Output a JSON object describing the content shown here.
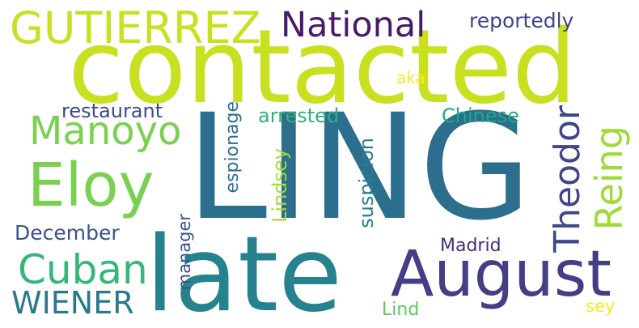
{
  "words": [
    {
      "key": "ling",
      "text": "LING",
      "color": "#2c6e8e"
    },
    {
      "key": "contacted",
      "text": "contacted",
      "color": "#c8e020"
    },
    {
      "key": "late",
      "text": "late",
      "color": "#26828e"
    },
    {
      "key": "august",
      "text": "August",
      "color": "#433e85"
    },
    {
      "key": "gutierrez",
      "text": "GUTIERREZ",
      "color": "#c8e020"
    },
    {
      "key": "national",
      "text": "National",
      "color": "#481a6c"
    },
    {
      "key": "reportedly",
      "text": "reportedly",
      "color": "#414487"
    },
    {
      "key": "aka",
      "text": "aka",
      "color": "#fde725"
    },
    {
      "key": "restaurant",
      "text": "restaurant",
      "color": "#3e4989"
    },
    {
      "key": "manoyo",
      "text": "Manoyo",
      "color": "#7ad151"
    },
    {
      "key": "eloy",
      "text": "Eloy",
      "color": "#7ad151"
    },
    {
      "key": "cuban",
      "text": "Cuban",
      "color": "#35b779"
    },
    {
      "key": "wiener",
      "text": "WIENER",
      "color": "#2a788e"
    },
    {
      "key": "december",
      "text": "December",
      "color": "#3b528b"
    },
    {
      "key": "arrested",
      "text": "arrested",
      "color": "#2db27d"
    },
    {
      "key": "chinese",
      "text": "Chinese",
      "color": "#22a884"
    },
    {
      "key": "theodor",
      "text": "Theodor",
      "color": "#404688"
    },
    {
      "key": "reing",
      "text": "Reing",
      "color": "#a0da39"
    },
    {
      "key": "espionage",
      "text": "espionage",
      "color": "#2e6f8e"
    },
    {
      "key": "lindsey",
      "text": "Lindsey",
      "color": "#a5db36"
    },
    {
      "key": "suspicion",
      "text": "suspicion",
      "color": "#277f8e"
    },
    {
      "key": "manager",
      "text": "manager",
      "color": "#3b528b"
    },
    {
      "key": "madrid",
      "text": "Madrid",
      "color": "#472d7b"
    },
    {
      "key": "lind",
      "text": "Lind",
      "color": "#5ec962"
    },
    {
      "key": "sey",
      "text": "sey",
      "color": "#fde725"
    }
  ]
}
